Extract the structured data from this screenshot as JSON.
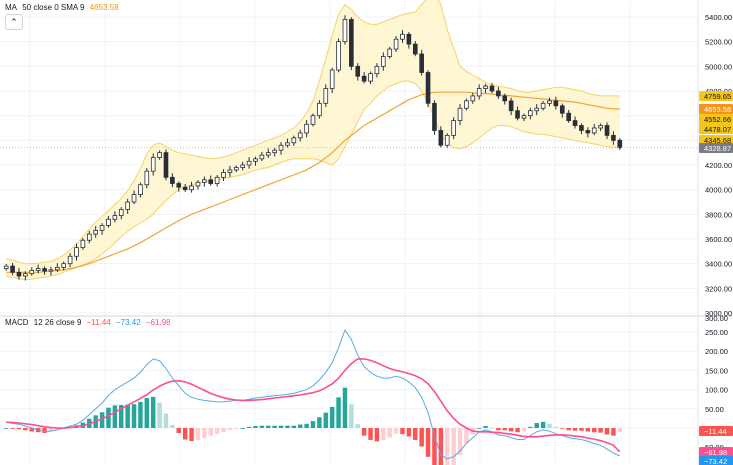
{
  "price_header": {
    "indicator": "MA",
    "params": "50 close 0 SMA 9",
    "value": "4653.58",
    "value_color": "#f7931a"
  },
  "macd_header": {
    "indicator": "MACD",
    "params": "12 26 close 9",
    "v1": "−11.44",
    "v2": "−73.42",
    "v3": "−61.98"
  },
  "colors": {
    "up": "#ffffff",
    "down": "#2a2e39",
    "band": "#f5d36a",
    "band_fill": "#fff5cc",
    "ma": "#f0a536",
    "macd": "#5aa9e6",
    "signal": "#ff4d8d",
    "hist_up_strong": "#26a69a",
    "hist_up_weak": "#b2dfdb",
    "hist_down_strong": "#ff5252",
    "hist_down_weak": "#ffcdd2",
    "grid": "#f0f3fa"
  },
  "price_axis": {
    "ticks": [
      "5400.00",
      "5200.00",
      "5000.00",
      "4800.00",
      "4600.00",
      "4400.00",
      "4200.00",
      "4000.00",
      "3800.00",
      "3600.00",
      "3400.00",
      "3200.00",
      "3000.00"
    ]
  },
  "macd_axis": {
    "ticks": [
      "300.00",
      "250.00",
      "200.00",
      "150.00",
      "100.00",
      "50.00",
      "50.00"
    ]
  },
  "price_tags": [
    {
      "label": "4759.65",
      "bg": "#f5c518",
      "fg": "#131722"
    },
    {
      "label": "4653.58",
      "bg": "#f7931a",
      "fg": "#ffffff"
    },
    {
      "label": "4552.66",
      "bg": "#f5c518",
      "fg": "#131722"
    },
    {
      "label": "4478.07",
      "bg": "#f5c518",
      "fg": "#131722"
    },
    {
      "label": "4345.68",
      "bg": "#f5c518",
      "fg": "#131722"
    },
    {
      "label": "4328.87",
      "bg": "#787b86",
      "fg": "#ffffff"
    }
  ],
  "macd_tags": [
    {
      "label": "−11.44",
      "bg": "#ff5252",
      "fg": "#ffffff"
    },
    {
      "label": "−61.98",
      "bg": "#ff4d8d",
      "fg": "#ffffff"
    },
    {
      "label": "−73.42",
      "bg": "#2196f3",
      "fg": "#ffffff"
    }
  ],
  "chart_data": [
    {
      "type": "candlestick",
      "title": "",
      "ylim": [
        3000,
        5500
      ],
      "grid": true,
      "indicators": [
        "Bollinger Bands",
        "MA 50"
      ],
      "close_points": [
        3380,
        3330,
        3300,
        3320,
        3345,
        3360,
        3340,
        3350,
        3370,
        3400,
        3460,
        3530,
        3590,
        3640,
        3670,
        3710,
        3760,
        3790,
        3840,
        3900,
        3960,
        4040,
        4150,
        4260,
        4300,
        4100,
        4050,
        4020,
        4000,
        4030,
        4060,
        4080,
        4050,
        4100,
        4140,
        4160,
        4180,
        4200,
        4230,
        4250,
        4280,
        4300,
        4320,
        4360,
        4380,
        4420,
        4460,
        4530,
        4600,
        4700,
        4820,
        4970,
        5200,
        5380,
        5000,
        4920,
        4880,
        4940,
        5000,
        5080,
        5140,
        5220,
        5260,
        5180,
        5100,
        4950,
        4700,
        4480,
        4360,
        4440,
        4560,
        4660,
        4720,
        4760,
        4820,
        4840,
        4800,
        4760,
        4720,
        4640,
        4580,
        4600,
        4640,
        4660,
        4700,
        4720,
        4680,
        4620,
        4560,
        4520,
        4480,
        4460,
        4500,
        4520,
        4440,
        4400,
        4340
      ],
      "bb_upper": [
        3440,
        3430,
        3410,
        3400,
        3400,
        3405,
        3410,
        3420,
        3440,
        3470,
        3510,
        3560,
        3620,
        3680,
        3740,
        3780,
        3830,
        3880,
        3930,
        3990,
        4070,
        4170,
        4290,
        4360,
        4380,
        4350,
        4320,
        4300,
        4290,
        4280,
        4270,
        4260,
        4250,
        4255,
        4265,
        4280,
        4300,
        4320,
        4340,
        4360,
        4380,
        4400,
        4420,
        4440,
        4470,
        4500,
        4550,
        4620,
        4720,
        4880,
        5060,
        5250,
        5420,
        5500,
        5460,
        5400,
        5360,
        5340,
        5340,
        5360,
        5380,
        5400,
        5420,
        5430,
        5440,
        5500,
        5560,
        5600,
        5500,
        5300,
        5150,
        5000,
        4960,
        4930,
        4900,
        4870,
        4850,
        4840,
        4830,
        4820,
        4800,
        4790,
        4790,
        4800,
        4810,
        4820,
        4830,
        4830,
        4820,
        4810,
        4800,
        4780,
        4770,
        4760,
        4760,
        4760,
        4760
      ],
      "bb_lower": [
        3300,
        3290,
        3280,
        3270,
        3275,
        3285,
        3290,
        3300,
        3310,
        3330,
        3350,
        3370,
        3390,
        3410,
        3440,
        3480,
        3520,
        3570,
        3620,
        3660,
        3700,
        3730,
        3760,
        3800,
        3860,
        3910,
        3960,
        4000,
        4020,
        4040,
        4050,
        4060,
        4070,
        4080,
        4090,
        4100,
        4110,
        4120,
        4140,
        4160,
        4170,
        4180,
        4200,
        4220,
        4240,
        4250,
        4250,
        4250,
        4250,
        4240,
        4220,
        4200,
        4250,
        4350,
        4450,
        4550,
        4650,
        4700,
        4760,
        4800,
        4840,
        4860,
        4880,
        4880,
        4860,
        4800,
        4700,
        4580,
        4450,
        4380,
        4340,
        4330,
        4350,
        4380,
        4420,
        4460,
        4500,
        4520,
        4520,
        4510,
        4490,
        4470,
        4460,
        4450,
        4450,
        4440,
        4430,
        4420,
        4410,
        4400,
        4390,
        4380,
        4370,
        4360,
        4350,
        4345,
        4340
      ],
      "ma50": [
        3330,
        3330,
        3330,
        3330,
        3330,
        3330,
        3335,
        3340,
        3345,
        3350,
        3360,
        3370,
        3385,
        3400,
        3420,
        3440,
        3460,
        3480,
        3500,
        3520,
        3545,
        3570,
        3600,
        3630,
        3660,
        3690,
        3720,
        3750,
        3775,
        3800,
        3820,
        3840,
        3860,
        3880,
        3900,
        3920,
        3940,
        3960,
        3980,
        4000,
        4020,
        4040,
        4060,
        4080,
        4100,
        4120,
        4140,
        4160,
        4190,
        4220,
        4260,
        4300,
        4350,
        4400,
        4440,
        4480,
        4520,
        4550,
        4580,
        4610,
        4640,
        4670,
        4700,
        4730,
        4750,
        4770,
        4780,
        4790,
        4790,
        4790,
        4790,
        4790,
        4790,
        4785,
        4780,
        4780,
        4775,
        4770,
        4765,
        4760,
        4755,
        4750,
        4745,
        4740,
        4735,
        4730,
        4725,
        4720,
        4715,
        4710,
        4700,
        4690,
        4680,
        4670,
        4660,
        4655,
        4654
      ]
    },
    {
      "type": "line",
      "title": "MACD 12 26 close 9",
      "ylim": [
        -100,
        320
      ],
      "series": [
        {
          "name": "",
          "values": [
            15,
            12,
            10,
            5,
            0,
            -5,
            -10,
            -8,
            -5,
            0,
            5,
            10,
            20,
            35,
            50,
            65,
            85,
            100,
            110,
            120,
            130,
            145,
            165,
            180,
            175,
            155,
            130,
            110,
            90,
            80,
            75,
            72,
            70,
            68,
            68,
            70,
            72,
            72,
            75,
            78,
            80,
            82,
            84,
            86,
            88,
            90,
            95,
            100,
            110,
            125,
            145,
            170,
            210,
            255,
            230,
            190,
            160,
            145,
            135,
            130,
            130,
            135,
            130,
            120,
            105,
            80,
            40,
            -20,
            -70,
            -80,
            -75,
            -60,
            -40,
            -25,
            -10,
            -5,
            -10,
            -18,
            -20,
            -25,
            -30,
            -30,
            -20,
            -10,
            -5,
            -8,
            -15,
            -20,
            -25,
            -28,
            -30,
            -35,
            -40,
            -45,
            -55,
            -65,
            -73
          ]
        },
        {
          "name": "",
          "values": [
            15,
            14,
            13,
            11,
            9,
            6,
            3,
            1,
            0,
            0,
            1,
            3,
            6,
            11,
            17,
            24,
            32,
            41,
            50,
            59,
            68,
            77,
            87,
            99,
            109,
            117,
            122,
            123,
            120,
            114,
            106,
            98,
            90,
            84,
            79,
            75,
            73,
            72,
            72,
            73,
            74,
            76,
            78,
            80,
            82,
            84,
            86,
            89,
            92,
            97,
            105,
            115,
            130,
            150,
            168,
            180,
            180,
            176,
            170,
            162,
            155,
            150,
            146,
            142,
            136,
            128,
            115,
            95,
            70,
            45,
            25,
            10,
            0,
            -8,
            -10,
            -10,
            -11,
            -12,
            -14,
            -16,
            -19,
            -22,
            -23,
            -23,
            -21,
            -19,
            -18,
            -18,
            -19,
            -21,
            -23,
            -26,
            -29,
            -33,
            -38,
            -45,
            -62
          ]
        }
      ],
      "histogram": [
        0,
        -2,
        -3,
        -6,
        -9,
        -11,
        -13,
        -9,
        -5,
        0,
        4,
        7,
        14,
        24,
        33,
        41,
        53,
        59,
        60,
        61,
        62,
        68,
        78,
        81,
        66,
        38,
        8,
        -13,
        -30,
        -34,
        -31,
        -26,
        -20,
        -16,
        -11,
        -5,
        -1,
        0,
        3,
        5,
        6,
        6,
        6,
        6,
        6,
        6,
        9,
        11,
        18,
        28,
        40,
        55,
        80,
        105,
        62,
        10,
        -20,
        -31,
        -35,
        -32,
        -25,
        -15,
        -16,
        -22,
        -31,
        -48,
        -75,
        -115,
        -140,
        -125,
        -100,
        -70,
        -40,
        -17,
        0,
        5,
        1,
        -6,
        -6,
        -9,
        -11,
        -8,
        3,
        13,
        16,
        11,
        3,
        -2,
        -6,
        -7,
        -7,
        -9,
        -11,
        -12,
        -17,
        -20,
        -11
      ]
    }
  ]
}
